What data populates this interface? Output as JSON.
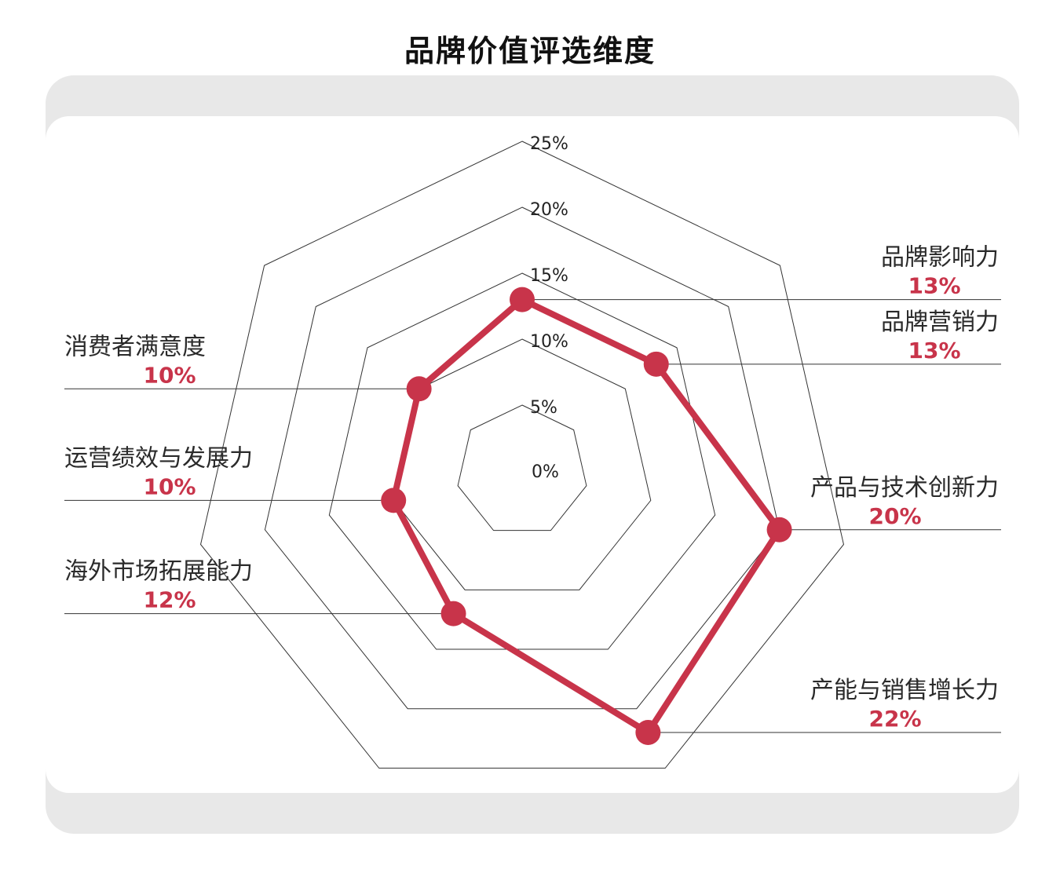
{
  "title": "品牌价值评选维度",
  "colors": {
    "series": "#c8344a",
    "grid": "#333333",
    "panel": "#e8e8e8"
  },
  "chart_data": {
    "type": "radar",
    "title": "品牌价值评选维度",
    "axis_ticks": [
      "0%",
      "5%",
      "10%",
      "15%",
      "20%",
      "25%"
    ],
    "rmax": 25,
    "categories": [
      "品牌影响力",
      "品牌营销力",
      "产品与技术创新力",
      "产能与销售增长力",
      "海外市场拓展能力",
      "运营绩效与发展力",
      "消费者满意度"
    ],
    "values": [
      13,
      13,
      20,
      22,
      12,
      10,
      10
    ],
    "value_labels": [
      "13%",
      "13%",
      "20%",
      "22%",
      "12%",
      "10%",
      "10%"
    ],
    "label_sides": [
      "right",
      "right",
      "right",
      "right",
      "left",
      "left",
      "left"
    ],
    "grid": true
  }
}
